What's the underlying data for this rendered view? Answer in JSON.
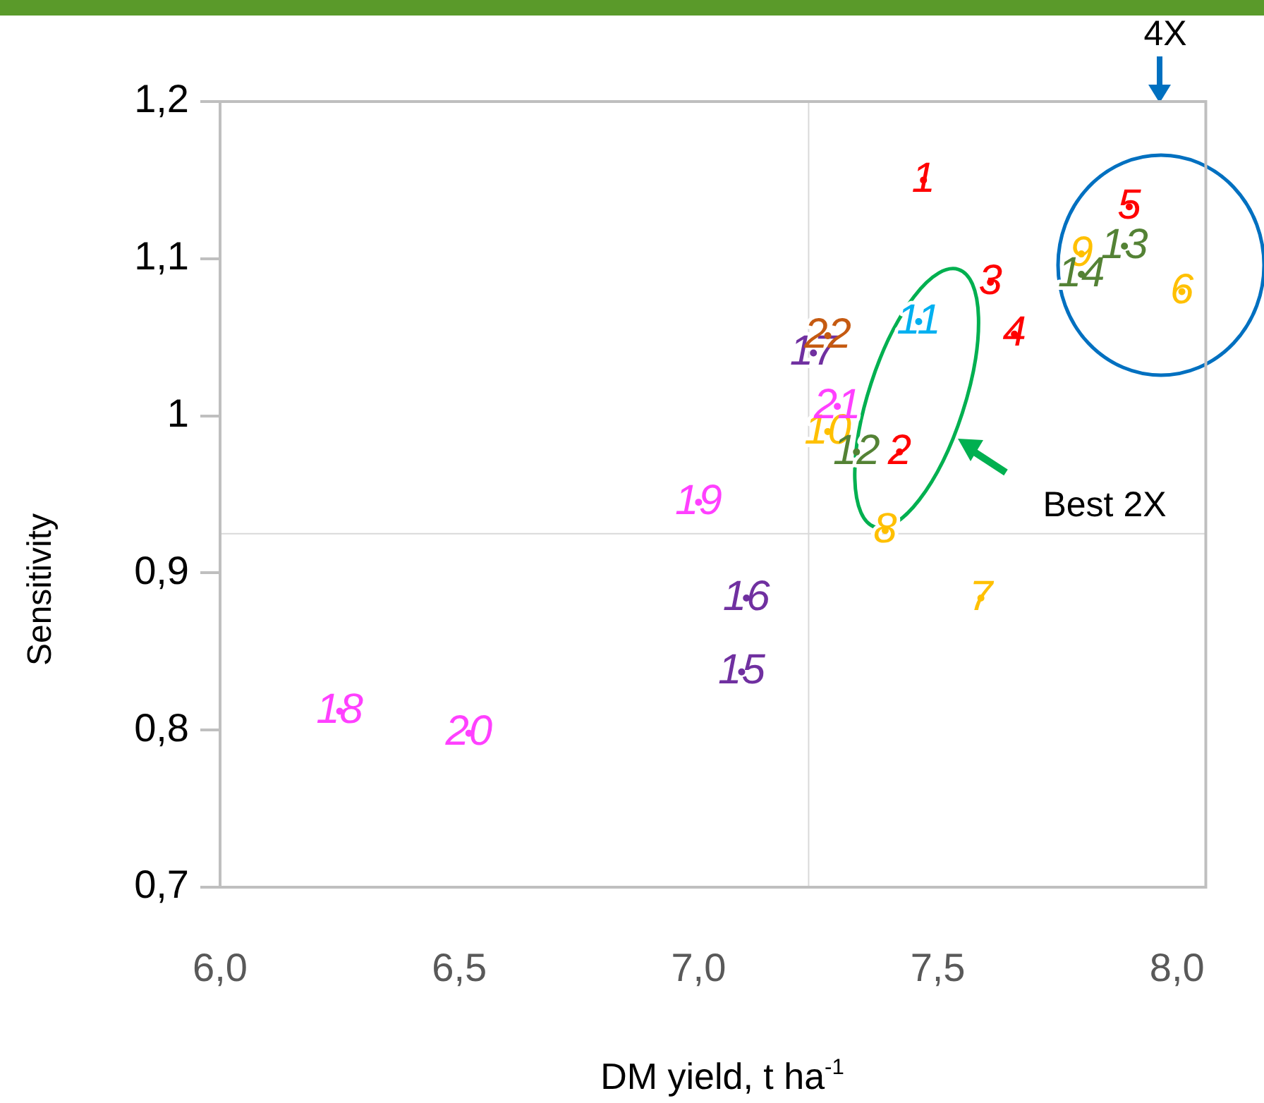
{
  "chart_data": {
    "type": "scatter",
    "xlabel": "DM yield, t ha$^{-1}$",
    "ylabel": "Sensitivity",
    "xlim": [
      6.0,
      8.06
    ],
    "ylim": [
      0.7,
      1.2
    ],
    "xticks": [
      {
        "value": 6,
        "label": "6,0"
      },
      {
        "value": 6.5,
        "label": "6,5"
      },
      {
        "value": 7,
        "label": "7,0"
      },
      {
        "value": 7.5,
        "label": "7,5"
      },
      {
        "value": 8,
        "label": "8,0"
      }
    ],
    "yticks": [
      {
        "value": 0.7,
        "label": "0,7"
      },
      {
        "value": 0.8,
        "label": "0,8"
      },
      {
        "value": 0.9,
        "label": "0,9"
      },
      {
        "value": 1,
        "label": "1"
      },
      {
        "value": 1.1,
        "label": "1,1"
      },
      {
        "value": 1.2,
        "label": "1,2"
      }
    ],
    "grid": false,
    "legend": false,
    "ref_lines": [
      {
        "axis": "x",
        "value": 7.23,
        "color": "#d9d9d9"
      },
      {
        "axis": "y",
        "value": 0.925,
        "color": "#d9d9d9"
      }
    ],
    "annotations": [
      "4X",
      "Best 2X"
    ],
    "series": [
      {
        "name": "1",
        "color": "#ff0000",
        "x": [
          7.47
        ],
        "values": [
          1.15
        ]
      },
      {
        "name": "2",
        "color": "#ff0000",
        "x": [
          7.42
        ],
        "values": [
          0.977
        ]
      },
      {
        "name": "3",
        "color": "#ff0000",
        "x": [
          7.61
        ],
        "values": [
          1.085
        ]
      },
      {
        "name": "4",
        "color": "#ff0000",
        "x": [
          7.66
        ],
        "values": [
          1.052
        ]
      },
      {
        "name": "5",
        "color": "#ff0000",
        "x": [
          7.9
        ],
        "values": [
          1.133
        ]
      },
      {
        "name": "6",
        "color": "#ffc000",
        "x": [
          8.01
        ],
        "values": [
          1.079
        ]
      },
      {
        "name": "7",
        "color": "#ffc000",
        "x": [
          7.59
        ],
        "values": [
          0.884
        ]
      },
      {
        "name": "8",
        "color": "#ffc000",
        "x": [
          7.39
        ],
        "values": [
          0.927
        ]
      },
      {
        "name": "9",
        "color": "#ffc000",
        "x": [
          7.8
        ],
        "values": [
          1.103
        ]
      },
      {
        "name": "10",
        "color": "#ffc000",
        "x": [
          7.27
        ],
        "values": [
          0.99
        ]
      },
      {
        "name": "11",
        "color": "#00b0f0",
        "x": [
          7.46
        ],
        "values": [
          1.06
        ]
      },
      {
        "name": "12",
        "color": "#548235",
        "x": [
          7.33
        ],
        "values": [
          0.977
        ]
      },
      {
        "name": "13",
        "color": "#548235",
        "x": [
          7.89
        ],
        "values": [
          1.108
        ]
      },
      {
        "name": "14",
        "color": "#548235",
        "x": [
          7.8
        ],
        "values": [
          1.09
        ]
      },
      {
        "name": "15",
        "color": "#7030a0",
        "x": [
          7.09
        ],
        "values": [
          0.837
        ]
      },
      {
        "name": "16",
        "color": "#7030a0",
        "x": [
          7.1
        ],
        "values": [
          0.884
        ]
      },
      {
        "name": "17",
        "color": "#7030a0",
        "x": [
          7.24
        ],
        "values": [
          1.04
        ]
      },
      {
        "name": "18",
        "color": "#ff40ff",
        "x": [
          6.25
        ],
        "values": [
          0.812
        ]
      },
      {
        "name": "19",
        "color": "#ff40ff",
        "x": [
          7.0
        ],
        "values": [
          0.945
        ]
      },
      {
        "name": "20",
        "color": "#ff40ff",
        "x": [
          6.52
        ],
        "values": [
          0.798
        ]
      },
      {
        "name": "21",
        "color": "#ff40ff",
        "x": [
          7.29
        ],
        "values": [
          1.006
        ]
      },
      {
        "name": "22",
        "color": "#c55a11",
        "x": [
          7.27
        ],
        "values": [
          1.051
        ]
      }
    ]
  }
}
